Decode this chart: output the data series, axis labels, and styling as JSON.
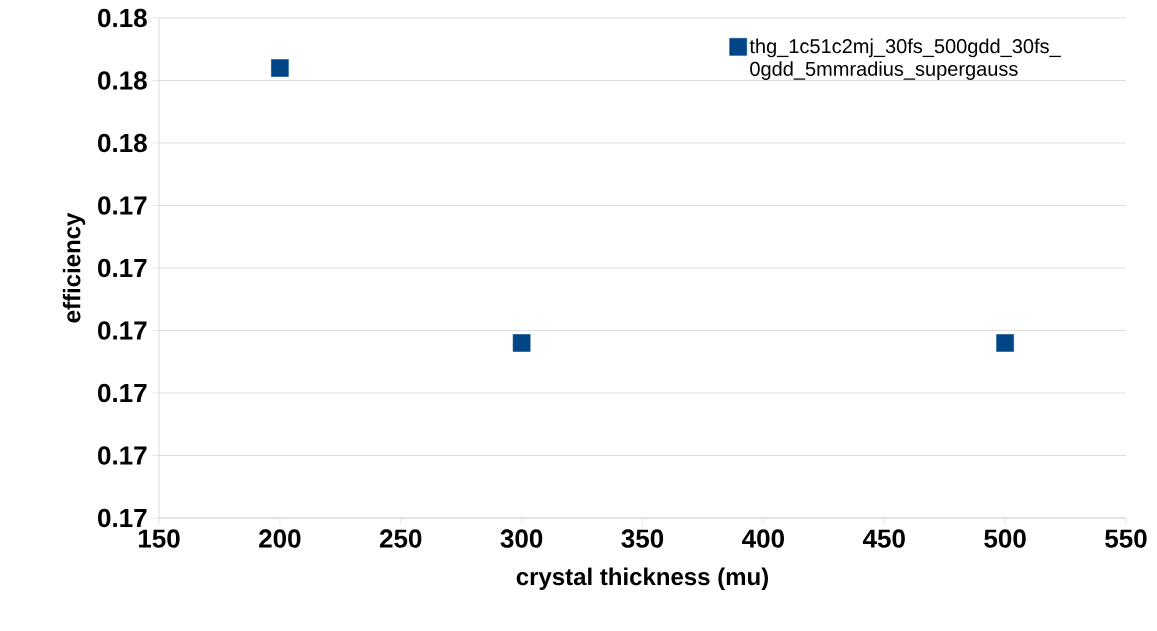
{
  "chart_data": {
    "type": "scatter",
    "xlabel": "crystal thickness (mu)",
    "ylabel": "efficiency",
    "x": [
      200,
      300,
      500
    ],
    "series": [
      {
        "name": "thg_1c51c2mj_30fs_500gdd_30fs_0gdd_5mmradius_supergauss",
        "color": "#004586",
        "values": [
          0.1756,
          0.1734,
          0.1734
        ]
      }
    ],
    "xlim": [
      150,
      550
    ],
    "xticks": [
      150,
      200,
      250,
      300,
      350,
      400,
      450,
      500,
      550
    ],
    "ylim": [
      0.172,
      0.176
    ],
    "yticks": [
      {
        "value": 0.172,
        "label": "0.17"
      },
      {
        "value": 0.1725,
        "label": "0.17"
      },
      {
        "value": 0.173,
        "label": "0.17"
      },
      {
        "value": 0.1735,
        "label": "0.17"
      },
      {
        "value": 0.174,
        "label": "0.17"
      },
      {
        "value": 0.1745,
        "label": "0.17"
      },
      {
        "value": 0.175,
        "label": "0.18"
      },
      {
        "value": 0.1755,
        "label": "0.18"
      },
      {
        "value": 0.176,
        "label": "0.18"
      }
    ],
    "grid": "y",
    "legend": "top right",
    "marker": "square"
  }
}
